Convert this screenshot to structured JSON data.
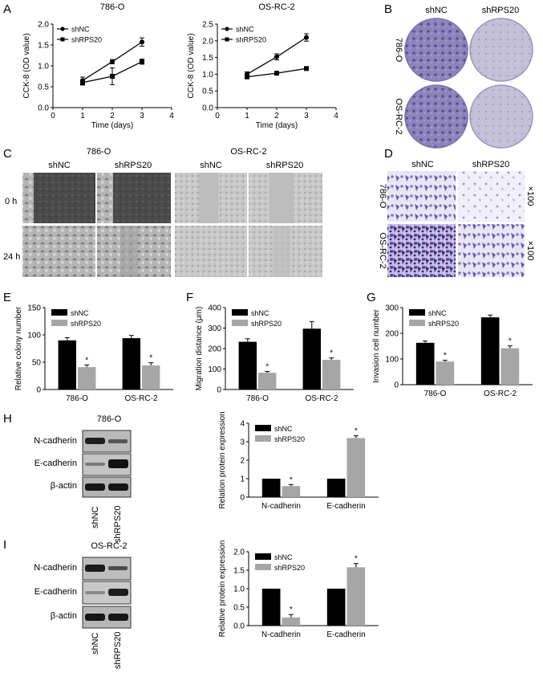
{
  "panels": {
    "A": "A",
    "B": "B",
    "C": "C",
    "D": "D",
    "E": "E",
    "F": "F",
    "G": "G",
    "H": "H",
    "I": "I"
  },
  "colors": {
    "nc": "#000000",
    "rps": "#a6a6a6",
    "stain": "#5b4a9e",
    "stain_light": "#b9b3d8",
    "phase_dark": "#3e3e3e",
    "phase_mid": "#8a8a8a"
  },
  "panelB": {
    "col_labels": [
      "shNC",
      "shRPS20"
    ],
    "row_labels": [
      "786-O",
      "OS-RC-2"
    ]
  },
  "panelC": {
    "groups": [
      "786-O",
      "OS-RC-2"
    ],
    "col_labels": [
      "shNC",
      "shRPS20",
      "shNC",
      "shRPS20"
    ],
    "row_labels": [
      "0 h",
      "24 h"
    ]
  },
  "panelD": {
    "col_labels": [
      "shNC",
      "shRPS20"
    ],
    "row_labels": [
      "786-O",
      "OS-RC-2"
    ],
    "magnification": [
      "×100",
      "×100"
    ]
  },
  "panelH": {
    "title": "786-O",
    "bands": [
      "N-cadherin",
      "E-cadherin",
      "β-actin"
    ],
    "lanes": [
      "shNC",
      "shRPS20"
    ]
  },
  "panelI": {
    "title": "OS-RC-2",
    "bands": [
      "N-cadherin",
      "E-cadherin",
      "β-actin"
    ],
    "lanes": [
      "shNC",
      "shRPS20"
    ]
  },
  "chart_data": [
    {
      "id": "A1",
      "type": "line",
      "title": "786-O",
      "xlabel": "Time (days)",
      "ylabel": "CCK-8 (OD value)",
      "xlim": [
        0,
        4
      ],
      "ylim": [
        0,
        2.0
      ],
      "xticks": [
        0,
        1,
        2,
        3,
        4
      ],
      "yticks": [
        0,
        0.5,
        1.0,
        1.5,
        2.0
      ],
      "x": [
        1,
        2,
        3
      ],
      "legend_position": "top-left",
      "series": [
        {
          "name": "shNC",
          "values": [
            0.65,
            1.1,
            1.57
          ],
          "errors": [
            0.08,
            0.05,
            0.1
          ],
          "marker": "circle"
        },
        {
          "name": "shRPS20",
          "values": [
            0.6,
            0.75,
            1.1
          ],
          "errors": [
            0.06,
            0.2,
            0.06
          ],
          "marker": "square"
        }
      ]
    },
    {
      "id": "A2",
      "type": "line",
      "title": "OS-RC-2",
      "xlabel": "Time (days)",
      "ylabel": "CCK-8 (OD value)",
      "xlim": [
        0,
        4
      ],
      "ylim": [
        0,
        2.5
      ],
      "xticks": [
        0,
        1,
        2,
        3,
        4
      ],
      "yticks": [
        0,
        0.5,
        1.0,
        1.5,
        2.0,
        2.5
      ],
      "x": [
        1,
        2,
        3
      ],
      "legend_position": "top-left",
      "series": [
        {
          "name": "shNC",
          "values": [
            1.0,
            1.52,
            2.1
          ],
          "errors": [
            0.07,
            0.09,
            0.11
          ],
          "marker": "circle"
        },
        {
          "name": "shRPS20",
          "values": [
            0.92,
            1.03,
            1.17
          ],
          "errors": [
            0.03,
            0.03,
            0.03
          ],
          "marker": "square"
        }
      ]
    },
    {
      "id": "E",
      "type": "bar",
      "ylabel": "Relative colony number",
      "categories": [
        "786-O",
        "OS-RC-2"
      ],
      "ylim": [
        0,
        150
      ],
      "yticks": [
        0,
        50,
        100,
        150
      ],
      "legend_position": "top-left",
      "significance": "*",
      "series": [
        {
          "name": "shNC",
          "values": [
            90,
            94
          ],
          "errors": [
            5,
            5
          ]
        },
        {
          "name": "shRPS20",
          "values": [
            41,
            44
          ],
          "errors": [
            4,
            5
          ]
        }
      ]
    },
    {
      "id": "F",
      "type": "bar",
      "ylabel": "Migration distance (μm)",
      "categories": [
        "786-O",
        "OS-RC-2"
      ],
      "ylim": [
        0,
        400
      ],
      "yticks": [
        0,
        100,
        200,
        300,
        400
      ],
      "legend_position": "top-left",
      "significance": "*",
      "series": [
        {
          "name": "shNC",
          "values": [
            233,
            297
          ],
          "errors": [
            15,
            35
          ]
        },
        {
          "name": "shRPS20",
          "values": [
            82,
            145
          ],
          "errors": [
            6,
            9
          ]
        }
      ]
    },
    {
      "id": "G",
      "type": "bar",
      "ylabel": "Invasion cell number",
      "categories": [
        "786-O",
        "OS-RC-2"
      ],
      "ylim": [
        0,
        300
      ],
      "yticks": [
        0,
        100,
        200,
        300
      ],
      "legend_position": "top-left",
      "significance": "*",
      "series": [
        {
          "name": "shNC",
          "values": [
            163,
            262
          ],
          "errors": [
            7,
            9
          ]
        },
        {
          "name": "shRPS20",
          "values": [
            90,
            142
          ],
          "errors": [
            5,
            9
          ]
        }
      ]
    },
    {
      "id": "H",
      "type": "bar",
      "ylabel": "Relation protein expression",
      "categories": [
        "N-cadherin",
        "E-cadherin"
      ],
      "ylim": [
        0,
        4
      ],
      "yticks": [
        0,
        1,
        2,
        3,
        4
      ],
      "legend_position": "top-left",
      "significance": "*",
      "series": [
        {
          "name": "shNC",
          "values": [
            1.0,
            1.0
          ],
          "errors": [
            0,
            0
          ]
        },
        {
          "name": "shRPS20",
          "values": [
            0.6,
            3.2
          ],
          "errors": [
            0.08,
            0.12
          ]
        }
      ]
    },
    {
      "id": "I",
      "type": "bar",
      "ylabel": "Relative protein expression",
      "categories": [
        "N-cadherin",
        "E-cadherin"
      ],
      "ylim": [
        0,
        2.0
      ],
      "yticks": [
        0,
        0.5,
        1.0,
        1.5,
        2.0
      ],
      "legend_position": "top-left",
      "significance": "*",
      "series": [
        {
          "name": "shNC",
          "values": [
            1.0,
            1.0
          ],
          "errors": [
            0,
            0
          ]
        },
        {
          "name": "shRPS20",
          "values": [
            0.22,
            1.58
          ],
          "errors": [
            0.08,
            0.1
          ]
        }
      ]
    }
  ]
}
